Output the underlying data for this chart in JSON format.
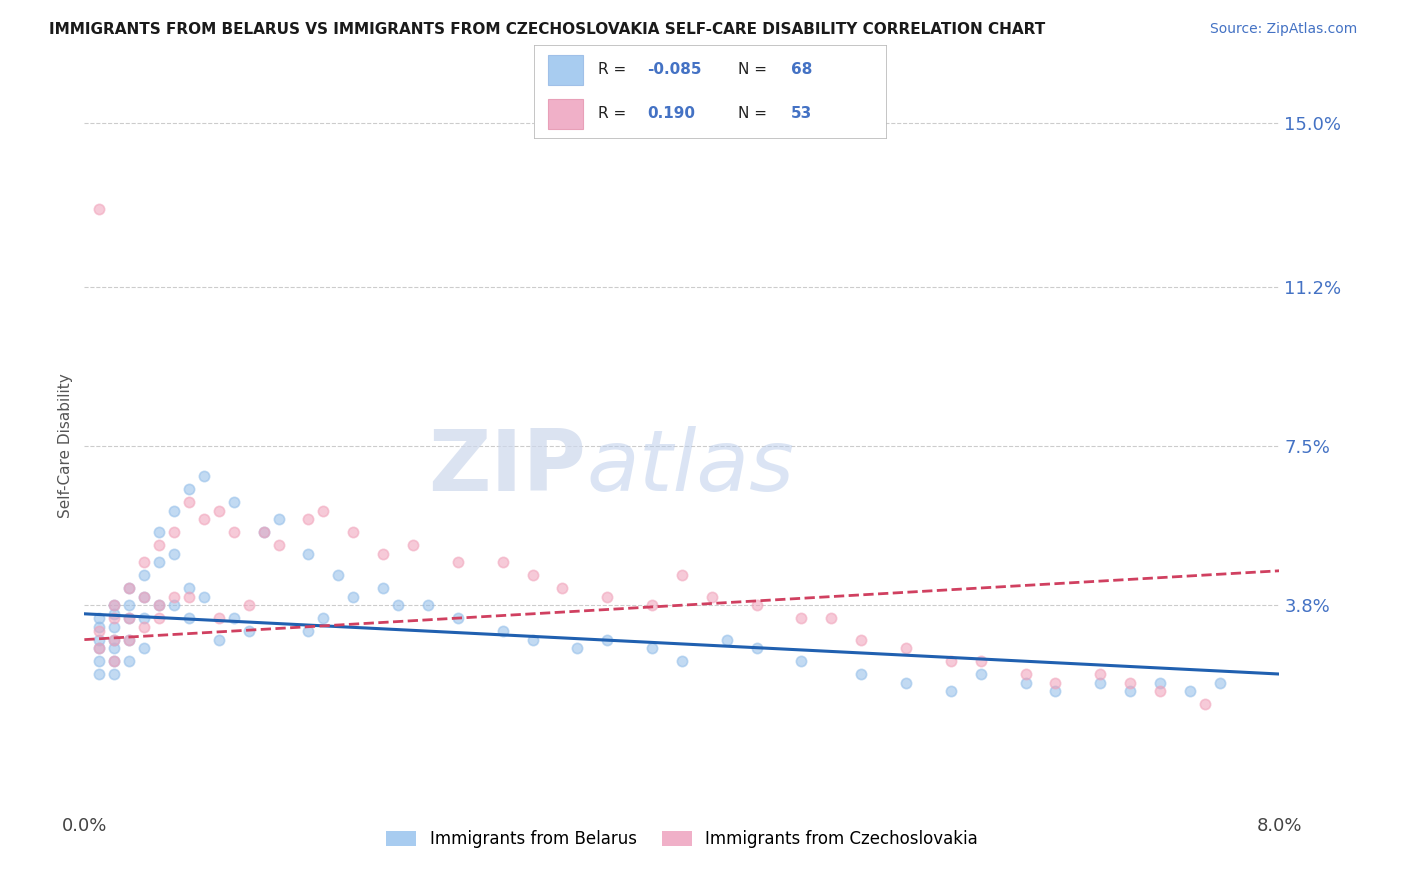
{
  "title": "IMMIGRANTS FROM BELARUS VS IMMIGRANTS FROM CZECHOSLOVAKIA SELF-CARE DISABILITY CORRELATION CHART",
  "source": "Source: ZipAtlas.com",
  "ylabel": "Self-Care Disability",
  "xlim": [
    0.0,
    0.08
  ],
  "ylim": [
    -0.01,
    0.16
  ],
  "yticks": [
    0.038,
    0.075,
    0.112,
    0.15
  ],
  "ytick_labels": [
    "3.8%",
    "7.5%",
    "11.2%",
    "15.0%"
  ],
  "xticks": [
    0.0,
    0.08
  ],
  "xtick_labels": [
    "0.0%",
    "8.0%"
  ],
  "belarus_color": "#90bce8",
  "czech_color": "#f0a0b8",
  "trend_belarus_color": "#2060b0",
  "trend_czech_color": "#d04060",
  "watermark_zip": "ZIP",
  "watermark_atlas": "atlas",
  "R_belarus": -0.085,
  "N_belarus": 68,
  "R_czech": 0.19,
  "N_czech": 53,
  "belarus_x": [
    0.001,
    0.001,
    0.001,
    0.001,
    0.001,
    0.001,
    0.002,
    0.002,
    0.002,
    0.002,
    0.002,
    0.002,
    0.002,
    0.003,
    0.003,
    0.003,
    0.003,
    0.003,
    0.004,
    0.004,
    0.004,
    0.004,
    0.005,
    0.005,
    0.005,
    0.006,
    0.006,
    0.006,
    0.007,
    0.007,
    0.008,
    0.008,
    0.01,
    0.01,
    0.012,
    0.013,
    0.015,
    0.015,
    0.017,
    0.018,
    0.02,
    0.021,
    0.023,
    0.025,
    0.028,
    0.03,
    0.033,
    0.035,
    0.038,
    0.04,
    0.043,
    0.045,
    0.048,
    0.052,
    0.055,
    0.058,
    0.06,
    0.063,
    0.065,
    0.068,
    0.07,
    0.072,
    0.074,
    0.076,
    0.007,
    0.009,
    0.011,
    0.016
  ],
  "belarus_y": [
    0.035,
    0.033,
    0.03,
    0.028,
    0.025,
    0.022,
    0.038,
    0.036,
    0.033,
    0.03,
    0.028,
    0.025,
    0.022,
    0.042,
    0.038,
    0.035,
    0.03,
    0.025,
    0.045,
    0.04,
    0.035,
    0.028,
    0.055,
    0.048,
    0.038,
    0.06,
    0.05,
    0.038,
    0.065,
    0.042,
    0.068,
    0.04,
    0.062,
    0.035,
    0.055,
    0.058,
    0.05,
    0.032,
    0.045,
    0.04,
    0.042,
    0.038,
    0.038,
    0.035,
    0.032,
    0.03,
    0.028,
    0.03,
    0.028,
    0.025,
    0.03,
    0.028,
    0.025,
    0.022,
    0.02,
    0.018,
    0.022,
    0.02,
    0.018,
    0.02,
    0.018,
    0.02,
    0.018,
    0.02,
    0.035,
    0.03,
    0.032,
    0.035
  ],
  "czech_x": [
    0.001,
    0.001,
    0.001,
    0.002,
    0.002,
    0.002,
    0.002,
    0.003,
    0.003,
    0.003,
    0.004,
    0.004,
    0.004,
    0.005,
    0.005,
    0.006,
    0.006,
    0.007,
    0.008,
    0.009,
    0.01,
    0.012,
    0.013,
    0.015,
    0.016,
    0.018,
    0.02,
    0.022,
    0.025,
    0.028,
    0.03,
    0.032,
    0.035,
    0.038,
    0.04,
    0.042,
    0.045,
    0.048,
    0.05,
    0.052,
    0.055,
    0.058,
    0.06,
    0.063,
    0.065,
    0.068,
    0.07,
    0.072,
    0.075,
    0.005,
    0.007,
    0.009,
    0.011
  ],
  "czech_y": [
    0.13,
    0.032,
    0.028,
    0.038,
    0.035,
    0.03,
    0.025,
    0.042,
    0.035,
    0.03,
    0.048,
    0.04,
    0.033,
    0.052,
    0.035,
    0.055,
    0.04,
    0.062,
    0.058,
    0.06,
    0.055,
    0.055,
    0.052,
    0.058,
    0.06,
    0.055,
    0.05,
    0.052,
    0.048,
    0.048,
    0.045,
    0.042,
    0.04,
    0.038,
    0.045,
    0.04,
    0.038,
    0.035,
    0.035,
    0.03,
    0.028,
    0.025,
    0.025,
    0.022,
    0.02,
    0.022,
    0.02,
    0.018,
    0.015,
    0.038,
    0.04,
    0.035,
    0.038
  ]
}
